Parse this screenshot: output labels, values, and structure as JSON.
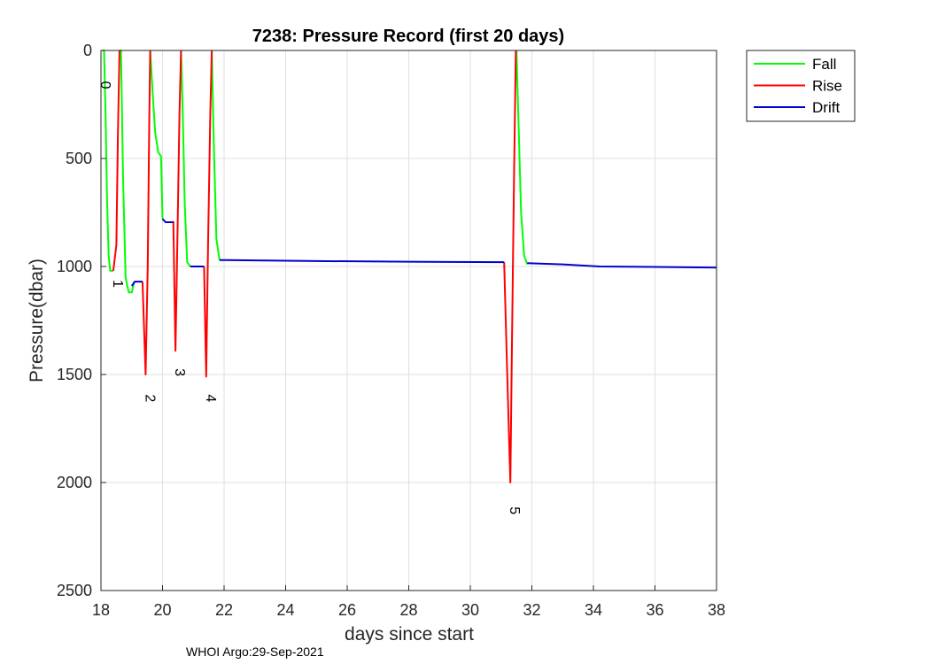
{
  "chart_data": {
    "type": "line",
    "title": "7238: Pressure Record (first 20 days)",
    "xlabel": "days since start",
    "ylabel": "Pressure(dbar)",
    "xlim": [
      18,
      38
    ],
    "ylim": [
      0,
      2500
    ],
    "y_reversed": true,
    "grid": true,
    "x_ticks": [
      18,
      20,
      22,
      24,
      26,
      28,
      30,
      32,
      34,
      36,
      38
    ],
    "y_ticks": [
      0,
      500,
      1000,
      1500,
      2000,
      2500
    ],
    "legend": {
      "placement": "outside-top-right",
      "entries": [
        "Fall",
        "Rise",
        "Drift"
      ]
    },
    "footer": "WHOI Argo:29-Sep-2021",
    "series": [
      {
        "name": "Fall",
        "color": "#00ff00",
        "segments": [
          [
            [
              18.05,
              0
            ],
            [
              18.1,
              0
            ],
            [
              18.15,
              300
            ],
            [
              18.2,
              700
            ],
            [
              18.25,
              950
            ],
            [
              18.3,
              1020
            ],
            [
              18.4,
              1020
            ]
          ],
          [
            [
              18.6,
              0
            ],
            [
              18.65,
              0
            ],
            [
              18.72,
              600
            ],
            [
              18.8,
              1050
            ],
            [
              18.9,
              1120
            ],
            [
              19.0,
              1120
            ],
            [
              19.08,
              1070
            ]
          ],
          [
            [
              19.6,
              0
            ],
            [
              19.68,
              200
            ],
            [
              19.76,
              380
            ],
            [
              19.86,
              470
            ],
            [
              19.95,
              490
            ],
            [
              20.0,
              780
            ]
          ],
          [
            [
              20.6,
              0
            ],
            [
              20.66,
              300
            ],
            [
              20.72,
              700
            ],
            [
              20.8,
              980
            ],
            [
              20.9,
              1000
            ]
          ],
          [
            [
              21.6,
              0
            ],
            [
              21.66,
              400
            ],
            [
              21.75,
              870
            ],
            [
              21.85,
              970
            ]
          ],
          [
            [
              31.5,
              0
            ],
            [
              31.56,
              300
            ],
            [
              31.65,
              750
            ],
            [
              31.75,
              950
            ],
            [
              31.85,
              990
            ]
          ]
        ]
      },
      {
        "name": "Rise",
        "color": "#ff0000",
        "segments": [
          [
            [
              18.4,
              1020
            ],
            [
              18.5,
              900
            ],
            [
              18.55,
              400
            ],
            [
              18.6,
              0
            ]
          ],
          [
            [
              19.35,
              1070
            ],
            [
              19.45,
              1500
            ],
            [
              19.52,
              1000
            ],
            [
              19.57,
              300
            ],
            [
              19.6,
              0
            ]
          ],
          [
            [
              20.35,
              790
            ],
            [
              20.42,
              1390
            ],
            [
              20.48,
              900
            ],
            [
              20.55,
              300
            ],
            [
              20.6,
              0
            ]
          ],
          [
            [
              21.35,
              1000
            ],
            [
              21.42,
              1510
            ],
            [
              21.48,
              900
            ],
            [
              21.55,
              300
            ],
            [
              21.6,
              0
            ]
          ],
          [
            [
              31.1,
              980
            ],
            [
              31.2,
              1500
            ],
            [
              31.3,
              2000
            ],
            [
              31.35,
              1400
            ],
            [
              31.42,
              600
            ],
            [
              31.48,
              0
            ]
          ]
        ]
      },
      {
        "name": "Drift",
        "color": "#0000d0",
        "segments": [
          [
            [
              19.0,
              1090
            ],
            [
              19.1,
              1070
            ],
            [
              19.2,
              1070
            ],
            [
              19.35,
              1070
            ]
          ],
          [
            [
              20.0,
              780
            ],
            [
              20.1,
              795
            ],
            [
              20.35,
              795
            ]
          ],
          [
            [
              20.9,
              1000
            ],
            [
              21.0,
              1000
            ],
            [
              21.35,
              1000
            ]
          ],
          [
            [
              21.85,
              970
            ],
            [
              25,
              975
            ],
            [
              28,
              978
            ],
            [
              31.1,
              980
            ]
          ],
          [
            [
              31.85,
              985
            ],
            [
              33,
              990
            ],
            [
              34.2,
              1000
            ],
            [
              36,
              1002
            ],
            [
              38,
              1005
            ]
          ]
        ]
      }
    ],
    "profile_labels": [
      {
        "text": "0",
        "x": 18.0,
        "y": 160
      },
      {
        "text": "1",
        "x": 18.4,
        "y": 1080
      },
      {
        "text": "2",
        "x": 19.45,
        "y": 1610
      },
      {
        "text": "3",
        "x": 20.42,
        "y": 1490
      },
      {
        "text": "4",
        "x": 21.42,
        "y": 1610
      },
      {
        "text": "5",
        "x": 31.3,
        "y": 2130
      }
    ]
  }
}
